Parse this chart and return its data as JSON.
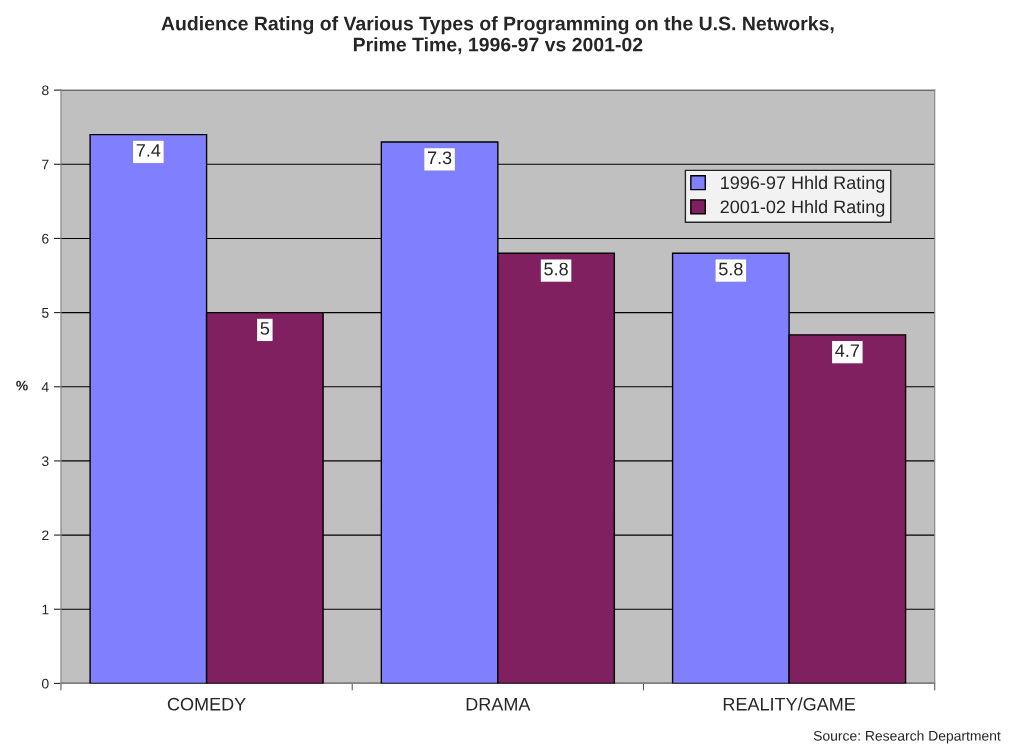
{
  "chart_data": {
    "type": "bar",
    "title": "Audience Rating of Various Types of Programming on the U.S. Networks,\nPrime Time, 1996-97 vs 2001-02",
    "ylabel": "%",
    "categories": [
      "COMEDY",
      "DRAMA",
      "REALITY/GAME"
    ],
    "series": [
      {
        "name": "1996-97 Hhld Rating",
        "color": "#8080ff",
        "values": [
          7.4,
          7.3,
          5.8
        ]
      },
      {
        "name": "2001-02 Hhld Rating",
        "color": "#802060",
        "values": [
          5,
          5.8,
          4.7
        ]
      }
    ],
    "ylim": [
      0,
      8
    ],
    "yticks": [
      0,
      1,
      2,
      3,
      4,
      5,
      6,
      7,
      8
    ],
    "grid": "y",
    "legend": "top right",
    "data_labels": true,
    "annotations": [
      "Source: Research Department"
    ]
  }
}
